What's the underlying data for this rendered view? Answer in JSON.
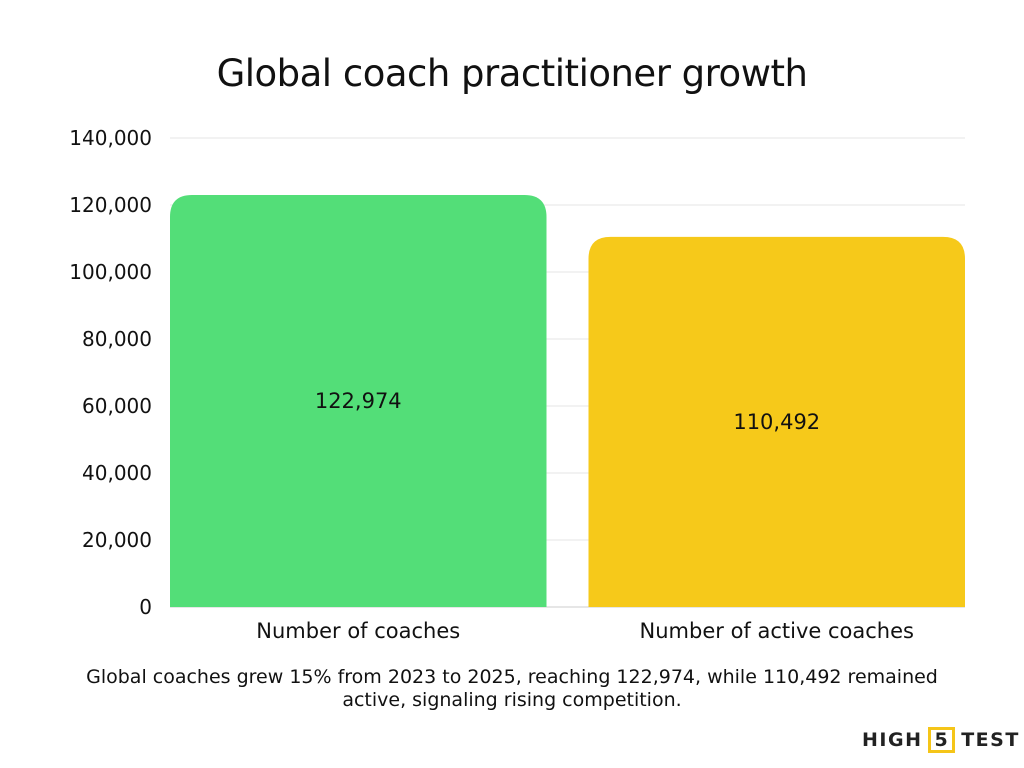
{
  "chart_data": {
    "type": "bar",
    "title": "Global coach practitioner growth",
    "categories": [
      "Number of coaches",
      "Number of active coaches"
    ],
    "values": [
      122974,
      110492
    ],
    "data_labels": [
      "122,974",
      "110,492"
    ],
    "colors": [
      "#53de78",
      "#f6c91a"
    ],
    "ylim": [
      0,
      140000
    ],
    "yticks": [
      0,
      20000,
      40000,
      60000,
      80000,
      100000,
      120000,
      140000
    ],
    "ytick_labels": [
      "0",
      "20,000",
      "40,000",
      "60,000",
      "80,000",
      "100,000",
      "120,000",
      "140,000"
    ],
    "grid": true,
    "xlabel": "",
    "ylabel": ""
  },
  "caption": "Global coaches grew 15% from 2023 to 2025, reaching 122,974, while 110,492 remained active, signaling rising competition.",
  "logo": {
    "left": "HIGH",
    "mid": "5",
    "right": "TEST"
  }
}
